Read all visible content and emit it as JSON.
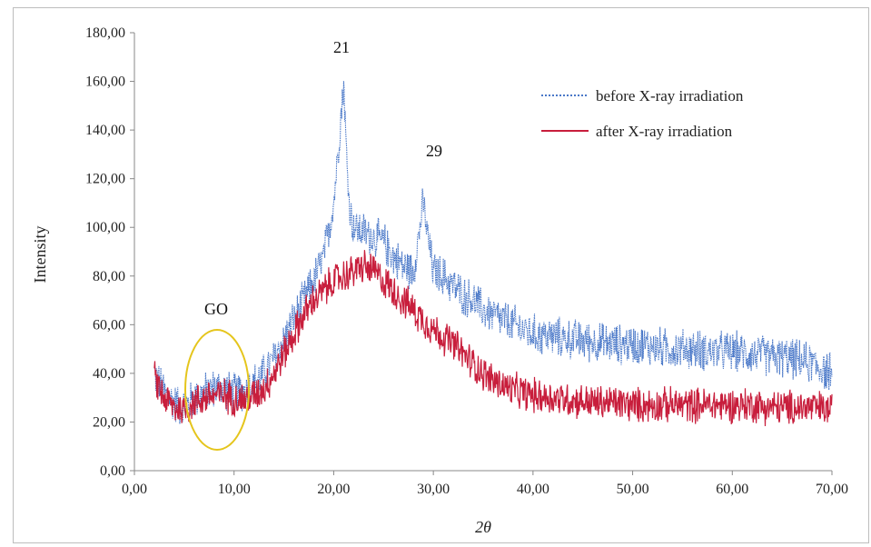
{
  "chart_data": {
    "type": "line",
    "title": "",
    "xlabel": "2θ",
    "ylabel": "Intensity",
    "xlim": [
      0,
      70
    ],
    "ylim": [
      0,
      180
    ],
    "x_ticks": [
      "0,00",
      "10,00",
      "20,00",
      "30,00",
      "40,00",
      "50,00",
      "60,00",
      "70,00"
    ],
    "y_ticks": [
      "0,00",
      "20,00",
      "40,00",
      "60,00",
      "80,00",
      "100,00",
      "120,00",
      "140,00",
      "160,00",
      "180,00"
    ],
    "legend_position": "top-right",
    "series": [
      {
        "name": "before X-ray irradiation",
        "color": "#4a78c8",
        "style": "dotted",
        "x": [
          2,
          3,
          4,
          5,
          6,
          7,
          8,
          9,
          10,
          11,
          12,
          13,
          14,
          15,
          16,
          17,
          18,
          19,
          20,
          20.5,
          21,
          21.3,
          21.6,
          22,
          23,
          24,
          25,
          26,
          27,
          28,
          29,
          29.5,
          30,
          31,
          32,
          33,
          34,
          35,
          36,
          37,
          38,
          39,
          40,
          42,
          44,
          46,
          48,
          50,
          52,
          54,
          56,
          58,
          60,
          62,
          64,
          66,
          68,
          70
        ],
        "y": [
          40,
          32,
          28,
          26,
          30,
          32,
          34,
          34,
          32,
          33,
          36,
          40,
          46,
          54,
          62,
          70,
          78,
          88,
          110,
          135,
          160,
          128,
          108,
          100,
          98,
          96,
          94,
          88,
          84,
          82,
          110,
          94,
          82,
          80,
          76,
          72,
          70,
          66,
          64,
          62,
          60,
          58,
          56,
          55,
          54,
          53,
          52,
          52,
          51,
          50,
          50,
          49,
          49,
          48,
          47,
          46,
          44,
          40
        ]
      },
      {
        "name": "after X-ray irradiation",
        "color": "#c81e3c",
        "style": "solid",
        "x": [
          2,
          3,
          4,
          5,
          6,
          7,
          8,
          9,
          10,
          11,
          12,
          13,
          14,
          15,
          16,
          17,
          18,
          19,
          20,
          21,
          22,
          23,
          24,
          25,
          26,
          27,
          28,
          29,
          30,
          31,
          32,
          33,
          34,
          35,
          36,
          37,
          38,
          40,
          42,
          44,
          46,
          48,
          50,
          52,
          54,
          56,
          58,
          60,
          62,
          64,
          66,
          68,
          70
        ],
        "y": [
          38,
          30,
          26,
          25,
          28,
          30,
          31,
          31,
          30,
          29,
          31,
          34,
          40,
          48,
          56,
          64,
          70,
          74,
          78,
          80,
          82,
          84,
          82,
          78,
          74,
          70,
          66,
          62,
          58,
          55,
          52,
          48,
          44,
          40,
          37,
          35,
          33,
          31,
          30,
          29,
          28,
          28,
          27,
          27,
          27,
          27,
          27,
          27,
          27,
          26,
          26,
          26,
          25
        ]
      }
    ],
    "annotations": [
      "21",
      "29",
      "GO"
    ]
  }
}
